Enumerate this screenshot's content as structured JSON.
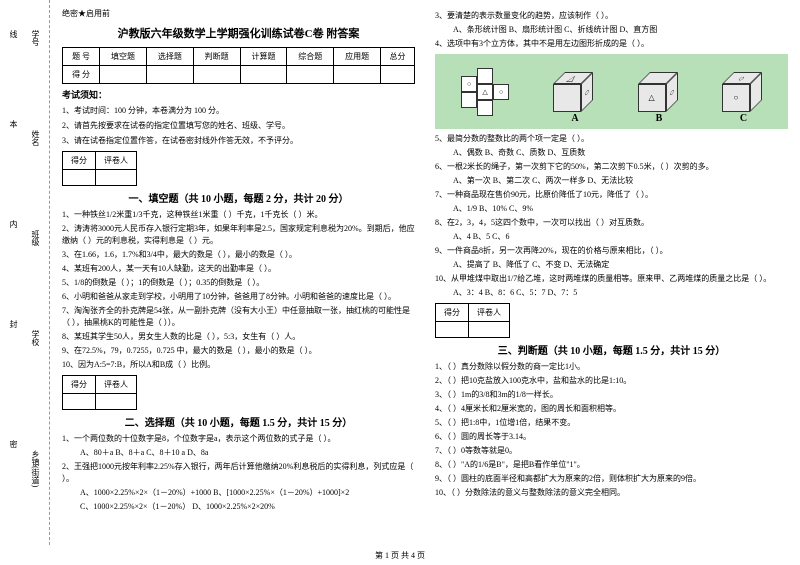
{
  "binding": {
    "labels": [
      "学号",
      "姓名",
      "班级",
      "学校",
      "乡镇(街道)"
    ],
    "marks": [
      "线",
      "本",
      "内",
      "封",
      "密"
    ]
  },
  "header": {
    "secret": "绝密★启用前",
    "title": "沪教版六年级数学上学期强化训练试卷C卷 附答案"
  },
  "score_table": {
    "headers": [
      "题 号",
      "填空题",
      "选择题",
      "判断题",
      "计算题",
      "综合题",
      "应用题",
      "总分"
    ],
    "row": "得 分"
  },
  "notice": {
    "heading": "考试须知：",
    "items": [
      "1、考试时间：100 分钟，本卷满分为 100 分。",
      "2、请首先按要求在试卷的指定位置填写您的姓名、班级、学号。",
      "3、请在试卷指定位置作答，在试卷密封线外作答无效，不予评分。"
    ]
  },
  "marker": {
    "c1": "得分",
    "c2": "评卷人"
  },
  "sec1": {
    "title": "一、填空题（共 10 小题，每题 2 分，共计 20 分）",
    "q": [
      "1、一种铁丝1/2米重1/3千克，这种铁丝1米重（    ）千克，1千克长（    ）米。",
      "2、涛涛将3000元人民币存入银行定期3年，如果年利率是2.5，国家规定利息税为20%。到期后，他应缴纳（    ）元的利息税，实得利息是（    ）元。",
      "3、在1.66，1.6，1.7%和3/4中，最大的数是（    ），最小的数是（    ）。",
      "4、某班有200人，某一天有10人缺勤，这天的出勤率是（    ）。",
      "5、1/8的倒数是（    ）；1的倒数是（    ）；0.35的倒数是（    ）。",
      "6、小明和爸爸从家走到学校，小明用了10分钟，爸爸用了8分钟。小明和爸爸的速度比是（    ）。",
      "7、淘淘张齐全的扑克牌是54张，从一副扑克牌（没有大小王）中任意抽取一张，抽红桃的可能性是（    ），抽黑桃K的可能性是（    ））。",
      "8、某班其学生50人，男女生人数的比是（    ），5:3，女生有（    ）人。",
      "9、在72.5%，79，0.7255，0.725 中，最大的数是（    ），最小的数是（    ）。",
      "10、因为A:5=7:B，所以A和B成（    ）比例。"
    ]
  },
  "sec2": {
    "title": "二、选择题（共 10 小题，每题 1.5 分，共计 15 分）",
    "q1": "1、一个两位数的十位数字是8，个位数字是a，表示这个两位数的式子是（    ）。",
    "q1o": "A、80＋a    B、8＋a    C、8＋10 a    D、8a",
    "q2": "2、王强把1000元按年利率2.25%存入银行，两年后计算他缴纳20%利息税后的实得利息，列式应是（    ）。",
    "q2a": "A、1000×2.25%×2×（1－20%）+1000    B、[1000×2.25%×（1－20%）+1000]×2",
    "q2b": "C、1000×2.25%×2×（1－20%）    D、1000×2.25%×2×20%",
    "q3": "3、要清楚的表示数量变化的趋势，应该制作（    ）。",
    "q3o": "A、条形统计图  B、扇形统计图  C、折线统计图  D、直方图",
    "q4": "4、选项中有3个立方体，其中不是用左边图形折成的是（    ）。",
    "q5": "5、最简分数的整数比的两个项一定是（    ）。",
    "q5o": "A、偶数    B、奇数    C、质数    D、互质数",
    "q6": "6、一根2米长的绳子，第一次剪下它的50%，第二次剪下0.5米，（    ）次剪的多。",
    "q6o": "A、第一次    B、第二次    C、两次一样多    D、无法比较",
    "q7": "7、一种商品现在售价90元，比原价降低了10元，降低了（    ）。",
    "q7o": "A、1/9    B、10%    C、9%",
    "q8": "8、在2，3，4，5这四个数中，一次可以找出（    ）对互质数。",
    "q8o": "A、4    B、5    C、6",
    "q9": "9、一件商品8折，另一次再降20%，现在的价格与原来相比，（    ）。",
    "q9o": "A、提高了    B、降低了    C、不变    D、无法确定",
    "q10": "10、从甲堆煤中取出1/7给乙堆，这时两堆煤的质量相等。原来甲、乙两堆煤的质量之比是（    ）。",
    "q10o": "A、3：4    B、8：6    C、5：7    D、7：5"
  },
  "dice": {
    "a": "A",
    "b": "B",
    "c": "C"
  },
  "sec3": {
    "title": "三、判断题（共 10 小题，每题 1.5 分，共计 15 分）",
    "q": [
      "1、（    ）真分数除以假分数的商一定比1小。",
      "2、（    ）把10克盐放入100克水中，盐和盐水的比是1:10。",
      "3、（    ）1m的3/8和3m的1/8一样长。",
      "4、（    ）4厘米长和2厘米宽的，图的周长和面积相等。",
      "5、（    ）把1:8中，1位增1倍，结果不变。",
      "6、（    ）圆的周长等于3.14。",
      "7、（    ）0等数等就是0。",
      "8、（    ）\"A的1/6是B\"，是把B看作单位\"1\"。",
      "9、（    ）圆柱的底面半径和高都扩大为原来的2倍，则体积扩大为原来的9倍。",
      "10、（    ）分数除法的意义与整数除法的意义完全相同。"
    ]
  },
  "footer": "第 1 页 共 4 页"
}
